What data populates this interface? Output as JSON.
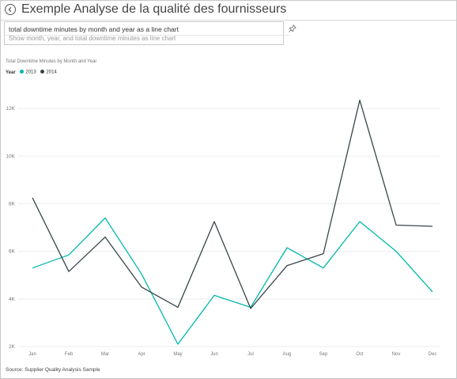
{
  "header": {
    "title": "Exemple Analyse de la qualité des fournisseurs",
    "back_icon": "back-arrow-icon"
  },
  "qa": {
    "query": "total downtime minutes by month and year as a line chart",
    "suggestion": "Show month, year, and total downtime minutes as line chart",
    "pin_icon": "pin-icon"
  },
  "chart": {
    "title": "Total Downtime Minutes by Month and Year",
    "legend_label": "Year"
  },
  "source": "Source: Supplier Quality Analysis Sample",
  "colors": {
    "series_2013": "#01b8aa",
    "series_2014": "#374649",
    "grid": "#ececec"
  },
  "chart_data": {
    "type": "line",
    "title": "Total Downtime Minutes by Month and Year",
    "xlabel": "",
    "ylabel": "",
    "categories": [
      "Jan",
      "Feb",
      "Mar",
      "Apr",
      "May",
      "Jun",
      "Jul",
      "Aug",
      "Sep",
      "Oct",
      "Nov",
      "Dec"
    ],
    "series": [
      {
        "name": "2013",
        "values": [
          5300,
          5850,
          7400,
          5050,
          2100,
          4150,
          3650,
          6150,
          5300,
          7250,
          6000,
          4300
        ]
      },
      {
        "name": "2014",
        "values": [
          8250,
          5150,
          6600,
          4500,
          3650,
          7250,
          3600,
          5400,
          5900,
          12350,
          7100,
          7050
        ]
      }
    ],
    "y_ticks": [
      "2K",
      "4K",
      "6K",
      "8K",
      "10K",
      "12K"
    ],
    "ylim": [
      2000,
      13000
    ],
    "grid": true,
    "legend_position": "top-left"
  }
}
